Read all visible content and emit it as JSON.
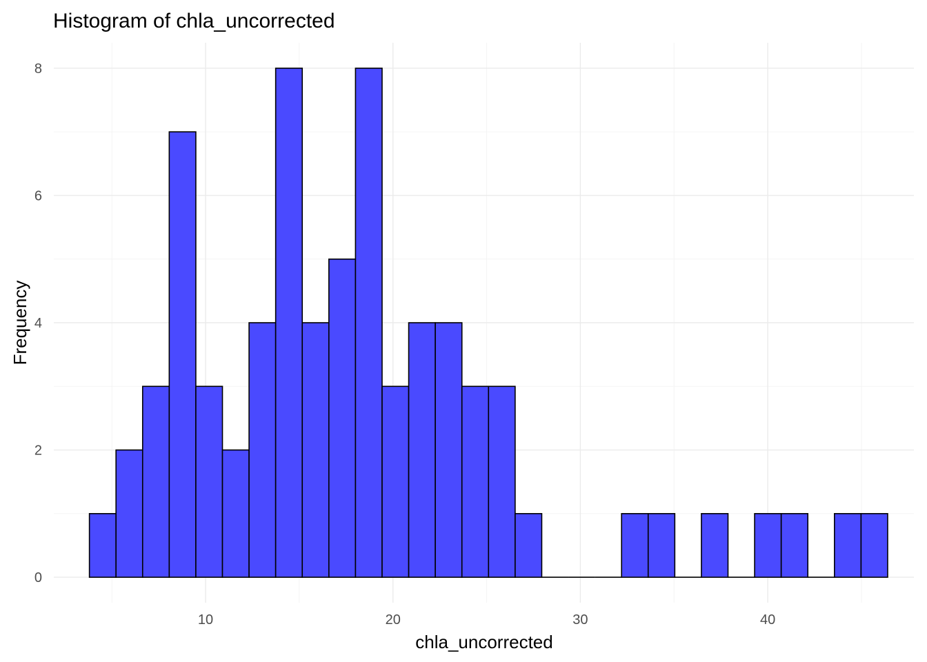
{
  "chart_data": {
    "type": "bar",
    "title": "Histogram of chla_uncorrected",
    "xlabel": "chla_uncorrected",
    "ylabel": "Frequency",
    "xlim": [
      1.9,
      47.8
    ],
    "ylim": [
      -0.4,
      8.4
    ],
    "x_ticks": [
      10,
      20,
      30,
      40
    ],
    "y_ticks": [
      0,
      2,
      4,
      6,
      8
    ],
    "grid": true,
    "bin_width": 1.42,
    "bin_start": 3.8,
    "counts": [
      1,
      2,
      3,
      7,
      3,
      2,
      4,
      8,
      4,
      5,
      8,
      3,
      4,
      4,
      3,
      3,
      1,
      0,
      0,
      0,
      1,
      1,
      0,
      1,
      0,
      1,
      1,
      0,
      1,
      1
    ],
    "colors": {
      "fill": "#4a4aff",
      "outline": "#000000",
      "grid": "#ebebeb"
    }
  }
}
